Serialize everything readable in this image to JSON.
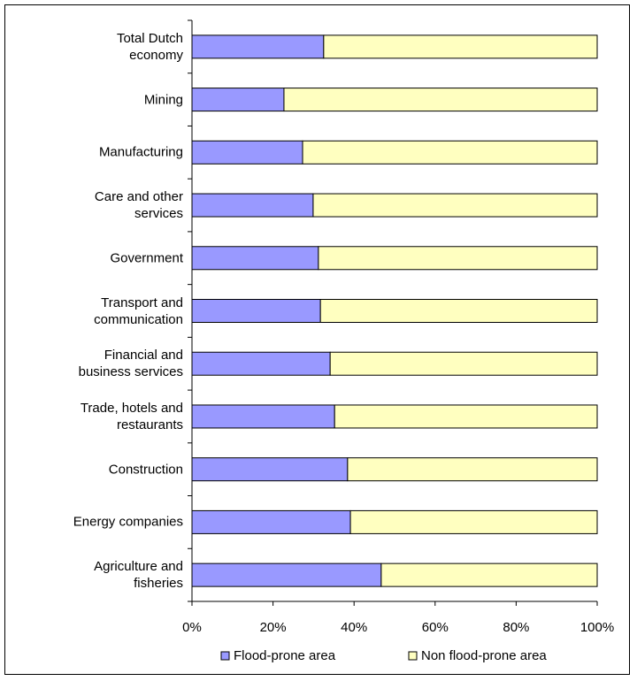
{
  "chart_data": {
    "type": "stacked-barh",
    "categories": [
      "Total Dutch economy",
      "Mining",
      "Manufacturing",
      "Care and other services",
      "Government",
      "Transport and communication",
      "Financial and business services",
      "Trade, hotels and restaurants",
      "Construction",
      "Energy companies",
      "Agriculture and fisheries"
    ],
    "series": [
      {
        "name": "Flood-prone area",
        "color": "#9999ff",
        "values": [
          32.5,
          22.7,
          27.3,
          29.9,
          31.2,
          31.7,
          34.1,
          35.2,
          38.4,
          39.1,
          46.7
        ]
      },
      {
        "name": "Non flood-prone area",
        "color": "#ffffc0",
        "values": [
          67.5,
          77.3,
          72.7,
          70.1,
          68.8,
          68.3,
          65.9,
          64.8,
          61.6,
          60.9,
          53.3
        ]
      }
    ],
    "xlim": [
      0,
      100
    ],
    "xticks": [
      {
        "value": 0,
        "label": "0%"
      },
      {
        "value": 20,
        "label": "20%"
      },
      {
        "value": 40,
        "label": "40%"
      },
      {
        "value": 60,
        "label": "60%"
      },
      {
        "value": 80,
        "label": "80%"
      },
      {
        "value": 100,
        "label": "100%"
      }
    ],
    "legend": "bottom"
  }
}
